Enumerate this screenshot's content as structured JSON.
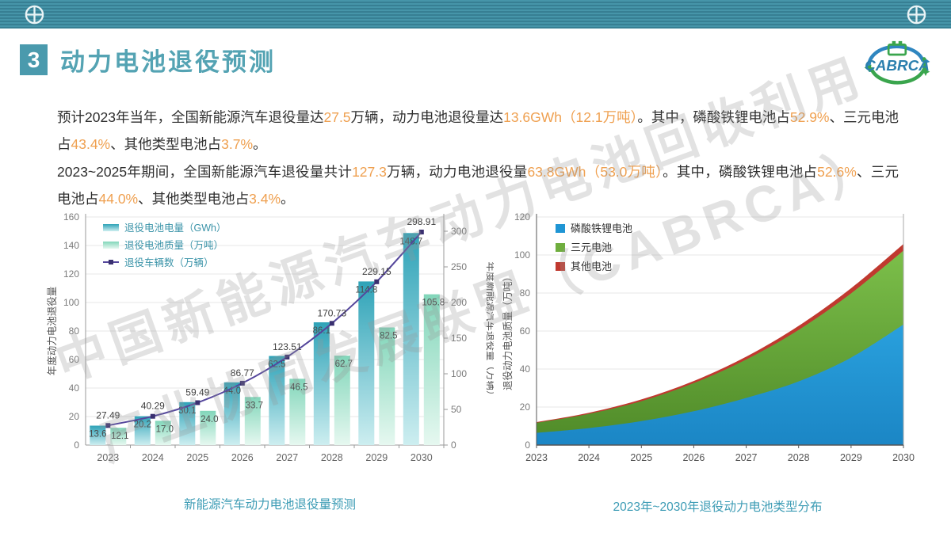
{
  "slide": {
    "number": "3",
    "title": "动力电池退役预测"
  },
  "logo": {
    "text": "CABRCA"
  },
  "colors": {
    "accent_teal": "#4a9aad",
    "highlight_orange": "#efa050",
    "caption_teal": "#3d9cb5",
    "bar_gwh_top": "#2fa3b8",
    "bar_gwh_bottom": "#cdeef0",
    "bar_ton_top": "#82d6ba",
    "bar_ton_bottom": "#e6f8f0",
    "line_purple": "#55479c",
    "marker_purple": "#392f6f",
    "area_lfp_blue": "#1f95d4",
    "area_ternary_green": "#6fae3e",
    "area_other_red": "#c0392f"
  },
  "paragraphs": {
    "p1": [
      {
        "t": "预计2023年当年，全国新能源汽车退役量达"
      },
      {
        "t": "27.5",
        "h": true
      },
      {
        "t": "万辆，动力电池退役量达"
      },
      {
        "t": "13.6GWh（12.1万吨）",
        "h": true
      },
      {
        "t": "。其中，磷酸铁锂电池占"
      },
      {
        "t": "52.9%",
        "h": true
      },
      {
        "t": "、三元电池占"
      },
      {
        "t": "43.4%",
        "h": true
      },
      {
        "t": "、其他类型电池占"
      },
      {
        "t": "3.7%",
        "h": true
      },
      {
        "t": "。"
      }
    ],
    "p2": [
      {
        "t": "2023~2025年期间，全国新能源汽车退役量共计"
      },
      {
        "t": "127.3",
        "h": true
      },
      {
        "t": "万辆，动力电池退役量"
      },
      {
        "t": "63.8GWh（53.0万吨）",
        "h": true
      },
      {
        "t": "。其中，磷酸铁锂电池占"
      },
      {
        "t": "52.6%",
        "h": true
      },
      {
        "t": "、三元电池占"
      },
      {
        "t": "44.0%",
        "h": true
      },
      {
        "t": "、其他类型电池占"
      },
      {
        "t": "3.4%",
        "h": true
      },
      {
        "t": "。"
      }
    ]
  },
  "watermark": {
    "line1": "中国新能源汽车动力电池回收利用",
    "line2": "产业协同发展联盟（CABRCA）"
  },
  "chart_data": [
    {
      "type": "bar+line",
      "title": "新能源汽车动力电池退役量预测",
      "categories": [
        "2023",
        "2024",
        "2025",
        "2026",
        "2027",
        "2028",
        "2029",
        "2030"
      ],
      "series": [
        {
          "name": "退役电池电量（GWh）",
          "kind": "bar",
          "axis": "left",
          "values": [
            13.6,
            20.2,
            30.1,
            44.0,
            62.5,
            86.1,
            114.8,
            148.7
          ],
          "labels": [
            "13.6",
            "20.2",
            "30.1",
            "44.0",
            "62.5",
            "86.1",
            "114.8",
            "148.7"
          ]
        },
        {
          "name": "退役电池质量（万吨）",
          "kind": "bar",
          "axis": "left",
          "values": [
            12.1,
            17.0,
            24.0,
            33.7,
            46.5,
            62.7,
            82.5,
            105.8
          ],
          "labels": [
            "12.1",
            "17.0",
            "24.0",
            "33.7",
            "46.5",
            "62.7",
            "82.5",
            "105.8"
          ]
        },
        {
          "name": "退役车辆数（万辆）",
          "kind": "line",
          "axis": "right",
          "values": [
            27.49,
            40.29,
            59.49,
            86.77,
            123.51,
            170.73,
            229.15,
            298.91
          ],
          "labels": [
            "27.49",
            "40.29",
            "59.49",
            "86.77",
            "123.51",
            "170.73",
            "229.15",
            "298.91"
          ]
        }
      ],
      "left_axis": {
        "label": "年度动力电池退役量",
        "min": 0,
        "max": 160,
        "step": 20
      },
      "right_axis": {
        "label": "年度新能源汽车退役量（万辆）",
        "min": 0,
        "max": 320,
        "step": 50,
        "last_tick": 300
      },
      "legend_position": "top-left",
      "grid": true
    },
    {
      "type": "area",
      "title": "2023年~2030年退役动力电池类型分布",
      "x": [
        "2023",
        "2024",
        "2025",
        "2026",
        "2027",
        "2028",
        "2029",
        "2030"
      ],
      "stacked": true,
      "series": [
        {
          "name": "磷酸铁锂电池",
          "values": [
            6.4,
            8.9,
            12.6,
            17.8,
            24.8,
            33.5,
            46.0,
            63.4
          ]
        },
        {
          "name": "三元电池",
          "values": [
            5.3,
            7.5,
            10.5,
            14.8,
            20.2,
            27.1,
            33.8,
            38.9
          ]
        },
        {
          "name": "其他电池",
          "values": [
            0.4,
            0.6,
            0.9,
            1.1,
            1.5,
            2.1,
            2.7,
            3.5
          ]
        }
      ],
      "y_axis": {
        "label": "退役动力电池质量（万吨）",
        "min": 0,
        "max": 120,
        "step": 20
      },
      "legend_position": "top-left",
      "grid": true
    }
  ]
}
